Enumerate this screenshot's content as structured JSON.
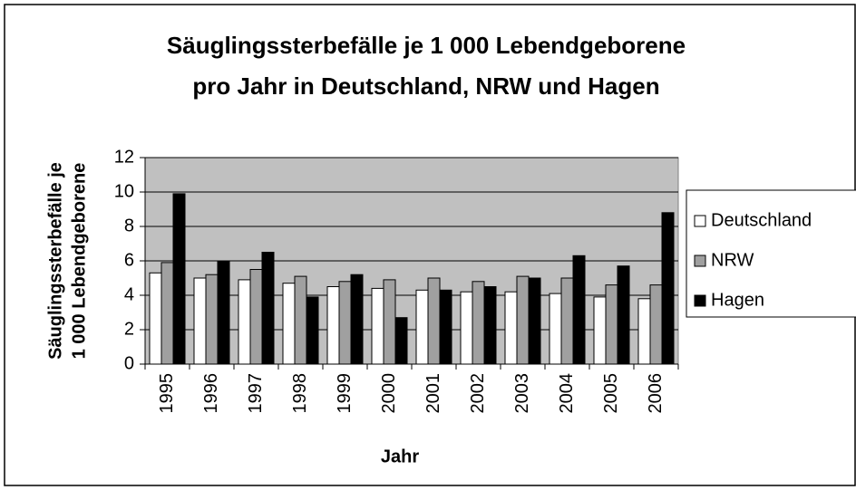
{
  "chart_data": {
    "type": "bar",
    "title": [
      "Säuglingssterbefälle je 1 000 Lebendgeborene",
      "pro Jahr in Deutschland, NRW und Hagen"
    ],
    "x_label": "Jahr",
    "y_label": [
      "Säuglingssterbefälle je",
      "1 000 Lebendgeborene"
    ],
    "categories": [
      "1995",
      "1996",
      "1997",
      "1998",
      "1999",
      "2000",
      "2001",
      "2002",
      "2003",
      "2004",
      "2005",
      "2006"
    ],
    "series": [
      {
        "name": "Deutschland",
        "color": "#ffffff",
        "values": [
          5.3,
          5.0,
          4.9,
          4.7,
          4.5,
          4.4,
          4.3,
          4.2,
          4.2,
          4.1,
          3.9,
          3.8
        ]
      },
      {
        "name": "NRW",
        "color": "#a0a0a0",
        "values": [
          5.9,
          5.2,
          5.5,
          5.1,
          4.8,
          4.9,
          5.0,
          4.8,
          5.1,
          5.0,
          4.6,
          4.6
        ]
      },
      {
        "name": "Hagen",
        "color": "#000000",
        "values": [
          9.9,
          6.0,
          6.5,
          3.9,
          5.2,
          2.7,
          4.3,
          4.5,
          5.0,
          6.3,
          5.7,
          8.8
        ]
      }
    ],
    "ylim": [
      0,
      12
    ],
    "yticks": [
      0,
      2,
      4,
      6,
      8,
      10,
      12
    ],
    "grid": true,
    "legend": "right"
  }
}
